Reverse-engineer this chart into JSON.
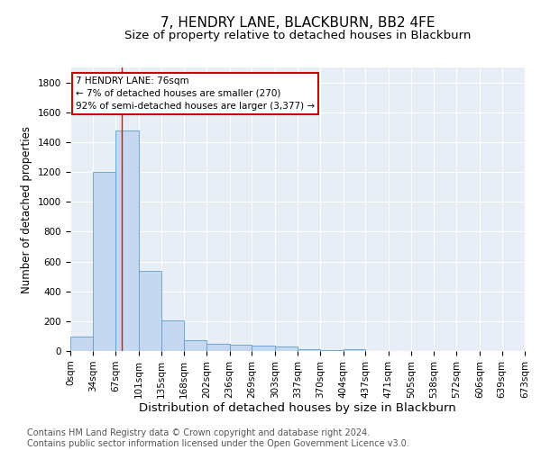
{
  "title": "7, HENDRY LANE, BLACKBURN, BB2 4FE",
  "subtitle": "Size of property relative to detached houses in Blackburn",
  "xlabel": "Distribution of detached houses by size in Blackburn",
  "ylabel": "Number of detached properties",
  "bar_color": "#c5d8f0",
  "bar_edge_color": "#5a9fd4",
  "grid_color": "#ffffff",
  "bg_color": "#e8eef5",
  "annotation_box_color": "#ffffff",
  "annotation_border_color": "#cc0000",
  "red_line_x": 76,
  "annotation_line1": "7 HENDRY LANE: 76sqm",
  "annotation_line2": "← 7% of detached houses are smaller (270)",
  "annotation_line3": "92% of semi-detached houses are larger (3,377) →",
  "footer_line1": "Contains HM Land Registry data © Crown copyright and database right 2024.",
  "footer_line2": "Contains public sector information licensed under the Open Government Licence v3.0.",
  "bin_edges": [
    0,
    34,
    67,
    101,
    135,
    168,
    202,
    236,
    269,
    303,
    337,
    370,
    404,
    437,
    471,
    505,
    538,
    572,
    606,
    639,
    673
  ],
  "bin_heights": [
    95,
    1200,
    1475,
    535,
    205,
    70,
    50,
    45,
    35,
    28,
    15,
    8,
    15,
    0,
    0,
    0,
    0,
    0,
    0,
    0
  ],
  "ylim": [
    0,
    1900
  ],
  "yticks": [
    0,
    200,
    400,
    600,
    800,
    1000,
    1200,
    1400,
    1600,
    1800
  ],
  "title_fontsize": 11,
  "subtitle_fontsize": 9.5,
  "xlabel_fontsize": 9.5,
  "ylabel_fontsize": 8.5,
  "tick_fontsize": 7.5,
  "annotation_fontsize": 7.5,
  "footer_fontsize": 7
}
